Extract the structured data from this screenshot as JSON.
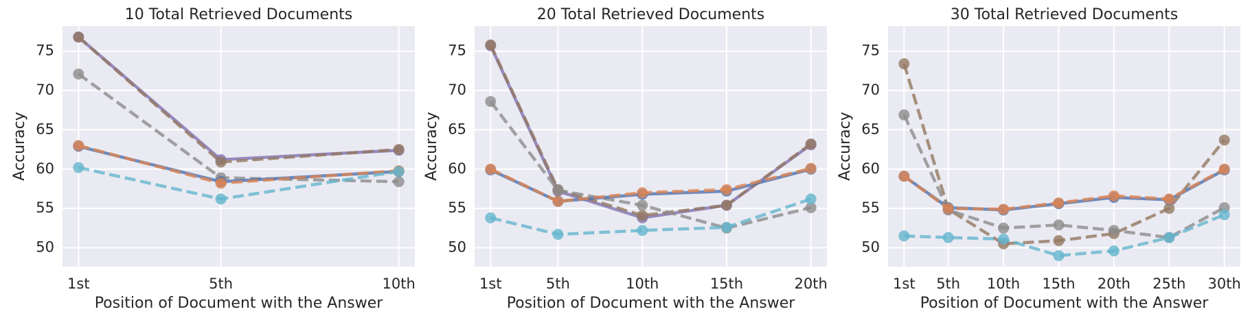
{
  "chart_data": [
    {
      "type": "line",
      "title": "10 Total Retrieved Documents",
      "xlabel": "Position of Document with the Answer",
      "ylabel": "Accuracy",
      "x": [
        1,
        5,
        10
      ],
      "xlim": [
        0.55,
        10.45
      ],
      "xticks": [
        {
          "value": 1,
          "label": "1st"
        },
        {
          "value": 5,
          "label": "5th"
        },
        {
          "value": 10,
          "label": "10th"
        }
      ],
      "ylim": [
        47.6,
        78.2
      ],
      "yticks": [
        50,
        55,
        60,
        65,
        70,
        75
      ],
      "grid": true,
      "series": [
        {
          "color": "#8172b3",
          "linestyle": "solid",
          "values": [
            76.8,
            61.2,
            62.4
          ]
        },
        {
          "color": "#937860",
          "linestyle": "dashed",
          "values": [
            76.8,
            60.9,
            62.5
          ]
        },
        {
          "color": "#8c8c8c",
          "linestyle": "dashed",
          "values": [
            72.1,
            58.9,
            58.4
          ]
        },
        {
          "color": "#4c72b0",
          "linestyle": "solid",
          "values": [
            62.9,
            58.4,
            59.7
          ]
        },
        {
          "color": "#dd8452",
          "linestyle": "dashed",
          "values": [
            63.0,
            58.2,
            59.8
          ]
        },
        {
          "color": "#64b5cd",
          "linestyle": "dashed",
          "values": [
            60.2,
            56.2,
            59.7
          ]
        }
      ]
    },
    {
      "type": "line",
      "title": "20 Total Retrieved Documents",
      "xlabel": "Position of Document with the Answer",
      "ylabel": "Accuracy",
      "x": [
        1,
        5,
        10,
        15,
        20
      ],
      "xlim": [
        0.05,
        20.95
      ],
      "xticks": [
        {
          "value": 1,
          "label": "1st"
        },
        {
          "value": 5,
          "label": "5th"
        },
        {
          "value": 10,
          "label": "10th"
        },
        {
          "value": 15,
          "label": "15th"
        },
        {
          "value": 20,
          "label": "20th"
        }
      ],
      "ylim": [
        47.6,
        78.2
      ],
      "yticks": [
        50,
        55,
        60,
        65,
        70,
        75
      ],
      "grid": true,
      "series": [
        {
          "color": "#8172b3",
          "linestyle": "solid",
          "values": [
            75.7,
            57.2,
            53.8,
            55.4,
            63.1
          ]
        },
        {
          "color": "#937860",
          "linestyle": "dashed",
          "values": [
            75.8,
            57.4,
            54.1,
            55.4,
            63.2
          ]
        },
        {
          "color": "#8c8c8c",
          "linestyle": "dashed",
          "values": [
            68.6,
            57.3,
            55.4,
            52.5,
            55.1
          ]
        },
        {
          "color": "#4c72b0",
          "linestyle": "solid",
          "values": [
            59.9,
            55.9,
            56.8,
            57.2,
            60.0
          ]
        },
        {
          "color": "#dd8452",
          "linestyle": "dashed",
          "values": [
            60.0,
            55.9,
            57.0,
            57.4,
            60.1
          ]
        },
        {
          "color": "#64b5cd",
          "linestyle": "dashed",
          "values": [
            53.8,
            51.7,
            52.2,
            52.6,
            56.2
          ]
        }
      ]
    },
    {
      "type": "line",
      "title": "30 Total Retrieved Documents",
      "xlabel": "Position of Document with the Answer",
      "ylabel": "Accuracy",
      "x": [
        1,
        5,
        10,
        15,
        20,
        25,
        30
      ],
      "xlim": [
        -0.45,
        31.45
      ],
      "xticks": [
        {
          "value": 1,
          "label": "1st"
        },
        {
          "value": 5,
          "label": "5th"
        },
        {
          "value": 10,
          "label": "10th"
        },
        {
          "value": 15,
          "label": "15th"
        },
        {
          "value": 20,
          "label": "20th"
        },
        {
          "value": 25,
          "label": "25th"
        },
        {
          "value": 30,
          "label": "30th"
        }
      ],
      "ylim": [
        47.6,
        78.2
      ],
      "yticks": [
        50,
        55,
        60,
        65,
        70,
        75
      ],
      "grid": true,
      "series": [
        {
          "color": "#937860",
          "linestyle": "dashed",
          "values": [
            73.4,
            54.9,
            50.5,
            50.9,
            51.8,
            55.0,
            63.7
          ]
        },
        {
          "color": "#8c8c8c",
          "linestyle": "dashed",
          "values": [
            66.9,
            54.8,
            52.5,
            52.9,
            52.2,
            51.3,
            55.1
          ]
        },
        {
          "color": "#4c72b0",
          "linestyle": "solid",
          "values": [
            59.1,
            55.1,
            54.8,
            55.6,
            56.4,
            56.1,
            59.9
          ]
        },
        {
          "color": "#dd8452",
          "linestyle": "dashed",
          "values": [
            59.1,
            55.0,
            54.9,
            55.7,
            56.6,
            56.2,
            60.0
          ]
        },
        {
          "color": "#64b5cd",
          "linestyle": "dashed",
          "values": [
            51.5,
            51.3,
            51.1,
            49.0,
            49.6,
            51.3,
            54.2
          ]
        }
      ]
    }
  ]
}
